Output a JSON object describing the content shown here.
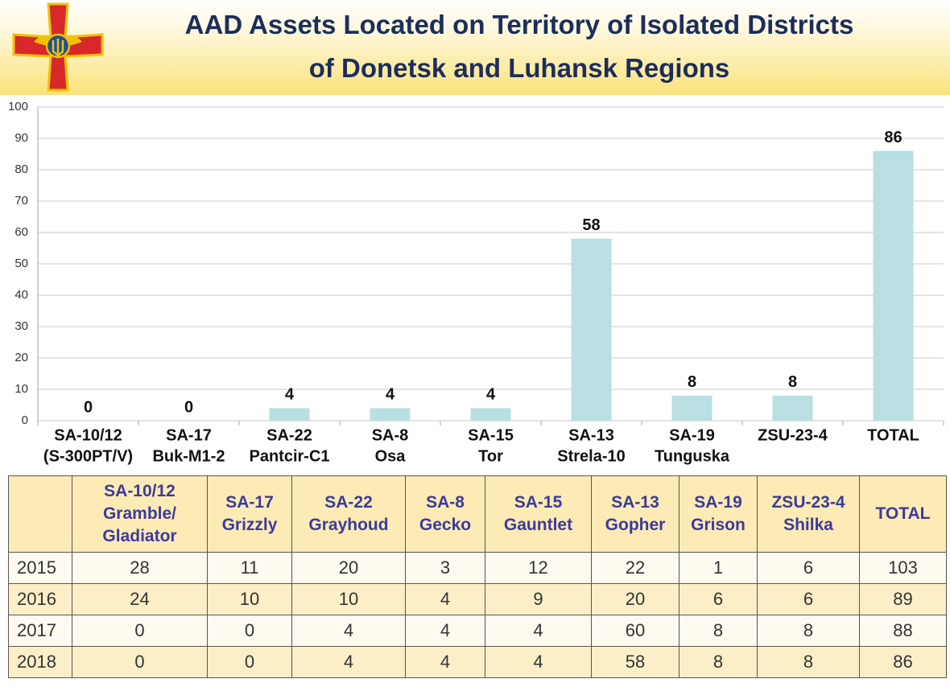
{
  "header": {
    "title": [
      "AAD Assets Located on Territory of Isolated Districts",
      "of Donetsk and Luhansk Regions"
    ]
  },
  "chart_data": {
    "type": "bar",
    "categories": [
      [
        "SA-10/12",
        "(S-300PT/V)"
      ],
      [
        "SA-17",
        "Buk-M1-2"
      ],
      [
        "SA-22",
        "Pantcir-C1"
      ],
      [
        "SA-8",
        "Osa"
      ],
      [
        "SA-15",
        "Tor"
      ],
      [
        "SA-13",
        "Strela-10"
      ],
      [
        "SA-19",
        "Tunguska"
      ],
      [
        "ZSU-23-4"
      ],
      [
        "TOTAL"
      ]
    ],
    "values": [
      0,
      0,
      4,
      4,
      4,
      58,
      8,
      8,
      86
    ],
    "color": "#b9dfe2",
    "ylim": [
      0,
      100
    ],
    "yticks": [
      0,
      10,
      20,
      30,
      40,
      50,
      60,
      70,
      80,
      90,
      100
    ],
    "grid": true
  },
  "table": {
    "columns": [
      [
        "SA-10/12",
        "Gramble/",
        "Gladiator"
      ],
      [
        "SA-17",
        "Grizzly"
      ],
      [
        "SA-22",
        "Grayhoud"
      ],
      [
        "SA-8",
        "Gecko"
      ],
      [
        "SA-15",
        "Gauntlet"
      ],
      [
        "SA-13",
        "Gopher"
      ],
      [
        "SA-19",
        "Grison"
      ],
      [
        "ZSU-23-4",
        "Shilka"
      ],
      [
        "TOTAL"
      ]
    ],
    "rows": [
      {
        "year": "2015",
        "values": [
          28,
          11,
          20,
          3,
          12,
          22,
          1,
          6,
          103
        ]
      },
      {
        "year": "2016",
        "values": [
          24,
          10,
          10,
          4,
          9,
          20,
          6,
          6,
          89
        ]
      },
      {
        "year": "2017",
        "values": [
          0,
          0,
          4,
          4,
          4,
          60,
          8,
          8,
          88
        ]
      },
      {
        "year": "2018",
        "values": [
          0,
          0,
          4,
          4,
          4,
          58,
          8,
          8,
          86
        ]
      }
    ]
  }
}
